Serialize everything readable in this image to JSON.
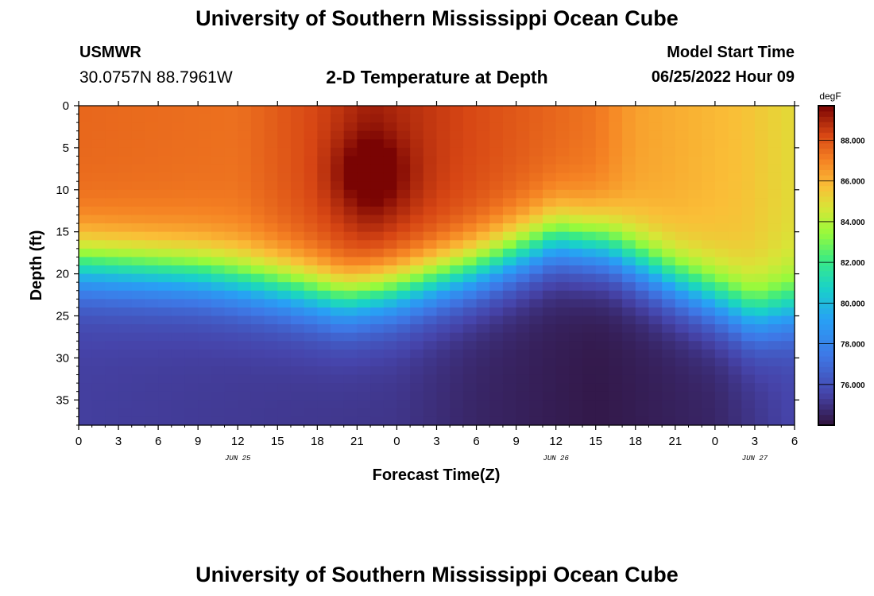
{
  "header": {
    "title": "University of Southern Mississippi Ocean Cube",
    "station": "USMWR",
    "coords": "30.0757N  88.7961W",
    "subtitle": "2-D Temperature at Depth",
    "model_start_label": "Model Start Time",
    "model_start_value": "06/25/2022 Hour 09"
  },
  "footer": {
    "title": "University of Southern Mississippi Ocean Cube"
  },
  "chart_data": {
    "type": "heatmap",
    "title": "2-D Temperature at Depth",
    "xlabel": "Forecast Time(Z)",
    "ylabel": "Depth (ft)",
    "x_range_hours": [
      0,
      54
    ],
    "x_tick_labels": [
      "0",
      "3",
      "6",
      "9",
      "12",
      "15",
      "18",
      "21",
      "0",
      "3",
      "6",
      "9",
      "12",
      "15",
      "18",
      "21",
      "0",
      "3",
      "6"
    ],
    "date_labels": [
      {
        "label": "JUN 25",
        "hour": 12
      },
      {
        "label": "JUN 26",
        "hour": 36
      },
      {
        "label": "JUN 27",
        "hour": 51
      }
    ],
    "y_range_ft": [
      0,
      38
    ],
    "y_ticks": [
      0,
      5,
      10,
      15,
      20,
      25,
      30,
      35
    ],
    "colorbar": {
      "unit": "degF",
      "min": 74.0,
      "max": 89.7,
      "ticks": [
        76,
        78,
        80,
        82,
        84,
        86,
        88
      ],
      "tick_labels": [
        "76.000",
        "78.000",
        "80.000",
        "82.000",
        "84.000",
        "86.000",
        "88.000"
      ]
    },
    "thermocline_depth_ft": [
      {
        "hour": 0,
        "depth": 19
      },
      {
        "hour": 9,
        "depth": 20
      },
      {
        "hour": 15,
        "depth": 21.5
      },
      {
        "hour": 20,
        "depth": 23
      },
      {
        "hour": 24,
        "depth": 22
      },
      {
        "hour": 30,
        "depth": 19.5
      },
      {
        "hour": 36,
        "depth": 16
      },
      {
        "hour": 40,
        "depth": 17
      },
      {
        "hour": 45,
        "depth": 21
      },
      {
        "hour": 51,
        "depth": 25
      },
      {
        "hour": 54,
        "depth": 24
      }
    ],
    "surface_temp_degF": [
      {
        "hour": 0,
        "temp": 87.6
      },
      {
        "hour": 12,
        "temp": 87.4
      },
      {
        "hour": 18,
        "temp": 88.3
      },
      {
        "hour": 22,
        "temp": 89.1
      },
      {
        "hour": 30,
        "temp": 88.2
      },
      {
        "hour": 39,
        "temp": 87.3
      },
      {
        "hour": 42,
        "temp": 86.4
      },
      {
        "hour": 50,
        "temp": 85.7
      },
      {
        "hour": 54,
        "temp": 85.0
      }
    ],
    "deep_temp_degF": [
      {
        "hour": 0,
        "temp": 75.4
      },
      {
        "hour": 24,
        "temp": 75.1
      },
      {
        "hour": 30,
        "temp": 74.6
      },
      {
        "hour": 39,
        "temp": 74.2
      },
      {
        "hour": 48,
        "temp": 74.6
      },
      {
        "hour": 54,
        "temp": 75.6
      }
    ],
    "warm_core": {
      "center_hour": 22,
      "center_depth_ft": 8,
      "temp_degF": 89.7
    }
  }
}
